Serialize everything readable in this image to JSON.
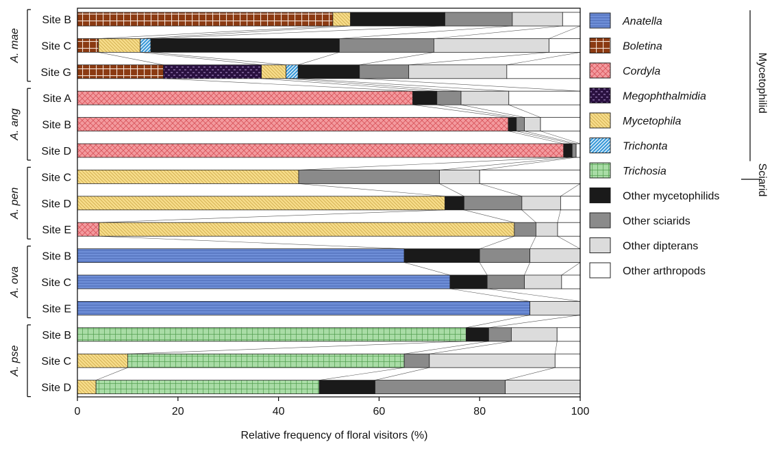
{
  "chart_data": {
    "type": "bar",
    "orientation": "horizontal",
    "stacked": true,
    "xlabel": "Relative frequency of floral visitors  (%)",
    "xlim": [
      0,
      100
    ],
    "xticks": [
      "0",
      "20",
      "40",
      "60",
      "80",
      "100"
    ],
    "categories_order": [
      "Anatella",
      "Boletina",
      "Cordyla",
      "Megophthalmidia",
      "Mycetophila",
      "Trichonta",
      "Trichosia",
      "Other mycetophilids",
      "Other sciarids",
      "Other dipterans",
      "Other arthropods"
    ],
    "legend": [
      {
        "key": "Anatella",
        "label": "Anatella",
        "italic": true,
        "color": "#6f8fd8",
        "pattern": "hlines"
      },
      {
        "key": "Boletina",
        "label": "Boletina",
        "italic": true,
        "color": "#8b3a12",
        "pattern": "grid-white"
      },
      {
        "key": "Cordyla",
        "label": "Cordyla",
        "italic": true,
        "color": "#f39a9e",
        "pattern": "crosshatch"
      },
      {
        "key": "Megophthalmidia",
        "label": "Megophthalmidia",
        "italic": true,
        "color": "#2a1140",
        "pattern": "dashes"
      },
      {
        "key": "Mycetophila",
        "label": "Mycetophila",
        "italic": true,
        "color": "#f6dc8a",
        "pattern": "diag"
      },
      {
        "key": "Trichonta",
        "label": "Trichonta",
        "italic": true,
        "color": "#3a9ad9",
        "pattern": "diag-white"
      },
      {
        "key": "Trichosia",
        "label": "Trichosia",
        "italic": true,
        "color": "#a9dca6",
        "pattern": "grid-green"
      },
      {
        "key": "Other mycetophilids",
        "label": "Other mycetophilids",
        "italic": false,
        "color": "#1a1a1a",
        "pattern": "solid"
      },
      {
        "key": "Other sciarids",
        "label": "Other sciarids",
        "italic": false,
        "color": "#8a8a8a",
        "pattern": "solid"
      },
      {
        "key": "Other dipterans",
        "label": "Other dipterans",
        "italic": false,
        "color": "#dcdcdc",
        "pattern": "solid"
      },
      {
        "key": "Other arthropods",
        "label": "Other arthropods",
        "italic": false,
        "color": "#ffffff",
        "pattern": "solid"
      }
    ],
    "legend_groups": [
      {
        "label": "Mycetophilid",
        "from": "Anatella",
        "to": "Trichonta"
      },
      {
        "label": "Sciarid",
        "from": "Trichosia",
        "to": "Trichosia"
      }
    ],
    "species": [
      {
        "label": "A. mae",
        "sites": [
          {
            "site": "Site B",
            "segments": [
              [
                "Boletina",
                50.8
              ],
              [
                "Mycetophila",
                3.5
              ],
              [
                "Other mycetophilids",
                18.8
              ],
              [
                "Other sciarids",
                13.4
              ],
              [
                "Other dipterans",
                10.0
              ],
              [
                "Other arthropods",
                3.5
              ]
            ]
          },
          {
            "site": "Site C",
            "segments": [
              [
                "Boletina",
                4.2
              ],
              [
                "Mycetophila",
                8.3
              ],
              [
                "Trichonta",
                2.1
              ],
              [
                "Other mycetophilids",
                37.5
              ],
              [
                "Other sciarids",
                18.8
              ],
              [
                "Other dipterans",
                22.9
              ],
              [
                "Other arthropods",
                6.2
              ]
            ]
          },
          {
            "site": "Site G",
            "segments": [
              [
                "Boletina",
                17.1
              ],
              [
                "Megophthalmidia",
                19.5
              ],
              [
                "Mycetophila",
                4.9
              ],
              [
                "Trichonta",
                2.4
              ],
              [
                "Other mycetophilids",
                12.2
              ],
              [
                "Other sciarids",
                9.8
              ],
              [
                "Other dipterans",
                19.5
              ],
              [
                "Other arthropods",
                14.6
              ]
            ]
          }
        ]
      },
      {
        "label": "A. ang",
        "sites": [
          {
            "site": "Site A",
            "segments": [
              [
                "Cordyla",
                66.7
              ],
              [
                "Other mycetophilids",
                4.8
              ],
              [
                "Other sciarids",
                4.8
              ],
              [
                "Other dipterans",
                9.5
              ],
              [
                "Other arthropods",
                14.2
              ]
            ]
          },
          {
            "site": "Site B",
            "segments": [
              [
                "Cordyla",
                85.7
              ],
              [
                "Other mycetophilids",
                1.6
              ],
              [
                "Other sciarids",
                1.6
              ],
              [
                "Other dipterans",
                3.2
              ],
              [
                "Other arthropods",
                7.9
              ]
            ]
          },
          {
            "site": "Site D",
            "segments": [
              [
                "Cordyla",
                96.7
              ],
              [
                "Other mycetophilids",
                1.7
              ],
              [
                "Other sciarids",
                0.8
              ],
              [
                "Other arthropods",
                0.8
              ]
            ]
          }
        ]
      },
      {
        "label": "A. pen",
        "sites": [
          {
            "site": "Site C",
            "segments": [
              [
                "Mycetophila",
                44.0
              ],
              [
                "Other sciarids",
                28.0
              ],
              [
                "Other dipterans",
                8.0
              ],
              [
                "Other arthropods",
                20.0
              ]
            ]
          },
          {
            "site": "Site D",
            "segments": [
              [
                "Mycetophila",
                73.1
              ],
              [
                "Other mycetophilids",
                3.8
              ],
              [
                "Other sciarids",
                11.5
              ],
              [
                "Other dipterans",
                7.7
              ],
              [
                "Other arthropods",
                3.9
              ]
            ]
          },
          {
            "site": "Site E",
            "segments": [
              [
                "Cordyla",
                4.3
              ],
              [
                "Mycetophila",
                82.6
              ],
              [
                "Other sciarids",
                4.3
              ],
              [
                "Other dipterans",
                4.3
              ],
              [
                "Other arthropods",
                4.5
              ]
            ]
          }
        ]
      },
      {
        "label": "A. ova",
        "sites": [
          {
            "site": "Site B",
            "segments": [
              [
                "Anatella",
                65.0
              ],
              [
                "Other mycetophilids",
                15.0
              ],
              [
                "Other sciarids",
                10.0
              ],
              [
                "Other dipterans",
                10.0
              ]
            ]
          },
          {
            "site": "Site C",
            "segments": [
              [
                "Anatella",
                74.1
              ],
              [
                "Other mycetophilids",
                7.4
              ],
              [
                "Other sciarids",
                7.4
              ],
              [
                "Other dipterans",
                7.4
              ],
              [
                "Other arthropods",
                3.7
              ]
            ]
          },
          {
            "site": "Site E",
            "segments": [
              [
                "Anatella",
                90.0
              ],
              [
                "Other dipterans",
                10.0
              ]
            ]
          }
        ]
      },
      {
        "label": "A. pse",
        "sites": [
          {
            "site": "Site B",
            "segments": [
              [
                "Trichosia",
                77.3
              ],
              [
                "Other mycetophilids",
                4.5
              ],
              [
                "Other sciarids",
                4.5
              ],
              [
                "Other dipterans",
                9.1
              ],
              [
                "Other arthropods",
                4.6
              ]
            ]
          },
          {
            "site": "Site C",
            "segments": [
              [
                "Mycetophila",
                10.0
              ],
              [
                "Trichosia",
                55.0
              ],
              [
                "Other sciarids",
                5.0
              ],
              [
                "Other dipterans",
                25.0
              ],
              [
                "Other arthropods",
                5.0
              ]
            ]
          },
          {
            "site": "Site D",
            "segments": [
              [
                "Mycetophila",
                3.7
              ],
              [
                "Trichosia",
                44.4
              ],
              [
                "Other mycetophilids",
                11.1
              ],
              [
                "Other sciarids",
                25.9
              ],
              [
                "Other dipterans",
                14.9
              ]
            ]
          }
        ]
      }
    ]
  }
}
